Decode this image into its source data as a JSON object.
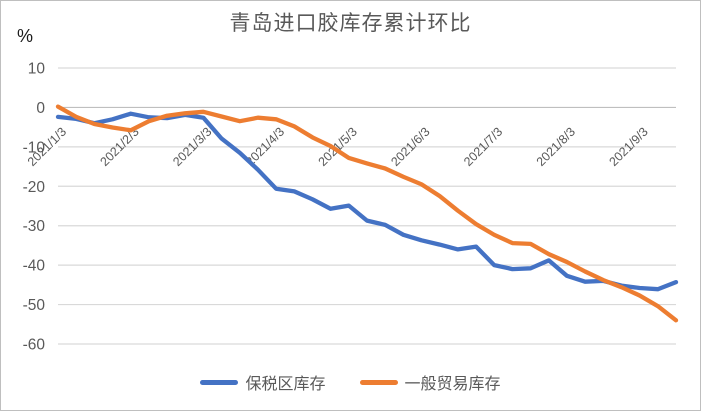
{
  "chart_data": {
    "type": "line",
    "title": "青岛进口胶库存累计环比",
    "y_axis_unit_label": "%",
    "ylim": [
      -60,
      10
    ],
    "y_ticks": [
      10,
      0,
      -10,
      -20,
      -30,
      -40,
      -50,
      -60
    ],
    "grid": true,
    "legend_position": "bottom",
    "x_tick_label_rotation_deg": 45,
    "x_tick_indices": [
      0,
      4,
      8,
      12,
      16,
      20,
      24,
      28,
      32
    ],
    "x_tick_labels": [
      "2021/1/3",
      "2021/2/3",
      "2021/3/3",
      "2021/4/3",
      "2021/5/3",
      "2021/6/3",
      "2021/7/3",
      "2021/8/3",
      "2021/9/3"
    ],
    "categories": [
      "2021/1/3",
      "2021/1/10",
      "2021/1/17",
      "2021/1/24",
      "2021/2/3",
      "2021/2/10",
      "2021/2/17",
      "2021/2/24",
      "2021/3/3",
      "2021/3/10",
      "2021/3/17",
      "2021/3/24",
      "2021/4/3",
      "2021/4/10",
      "2021/4/17",
      "2021/4/24",
      "2021/5/3",
      "2021/5/10",
      "2021/5/17",
      "2021/5/24",
      "2021/6/3",
      "2021/6/10",
      "2021/6/17",
      "2021/6/24",
      "2021/7/3",
      "2021/7/10",
      "2021/7/17",
      "2021/7/24",
      "2021/8/3",
      "2021/8/10",
      "2021/8/17",
      "2021/8/24",
      "2021/9/3",
      "2021/9/10",
      "2021/9/17"
    ],
    "series": [
      {
        "name": "保税区库存",
        "color": "#4472C4",
        "values": [
          -2.4,
          -2.9,
          -4.0,
          -3.0,
          -1.6,
          -2.5,
          -2.7,
          -1.9,
          -2.6,
          -7.9,
          -11.5,
          -15.8,
          -20.6,
          -21.3,
          -23.3,
          -25.7,
          -24.9,
          -28.7,
          -29.8,
          -32.3,
          -33.7,
          -34.8,
          -36.0,
          -35.3,
          -40.0,
          -41.0,
          -40.8,
          -38.8,
          -42.7,
          -44.2,
          -44.0,
          -45.2,
          -45.8,
          -46.1,
          -44.3
        ]
      },
      {
        "name": "一般贸易库存",
        "color": "#ED7D31",
        "values": [
          0.2,
          -2.4,
          -4.2,
          -5.1,
          -5.8,
          -3.5,
          -2.1,
          -1.5,
          -1.1,
          -2.3,
          -3.5,
          -2.6,
          -3.0,
          -4.8,
          -7.6,
          -9.8,
          -12.8,
          -14.2,
          -15.5,
          -17.6,
          -19.5,
          -22.5,
          -26.2,
          -29.6,
          -32.3,
          -34.4,
          -34.6,
          -37.2,
          -39.2,
          -41.6,
          -43.8,
          -45.6,
          -47.7,
          -50.4,
          -54.0
        ]
      }
    ],
    "colors": {
      "gridline": "#d9d9d9",
      "zero_axis": "#bfbfbf",
      "tick_label": "#595959",
      "title": "#595959"
    }
  }
}
